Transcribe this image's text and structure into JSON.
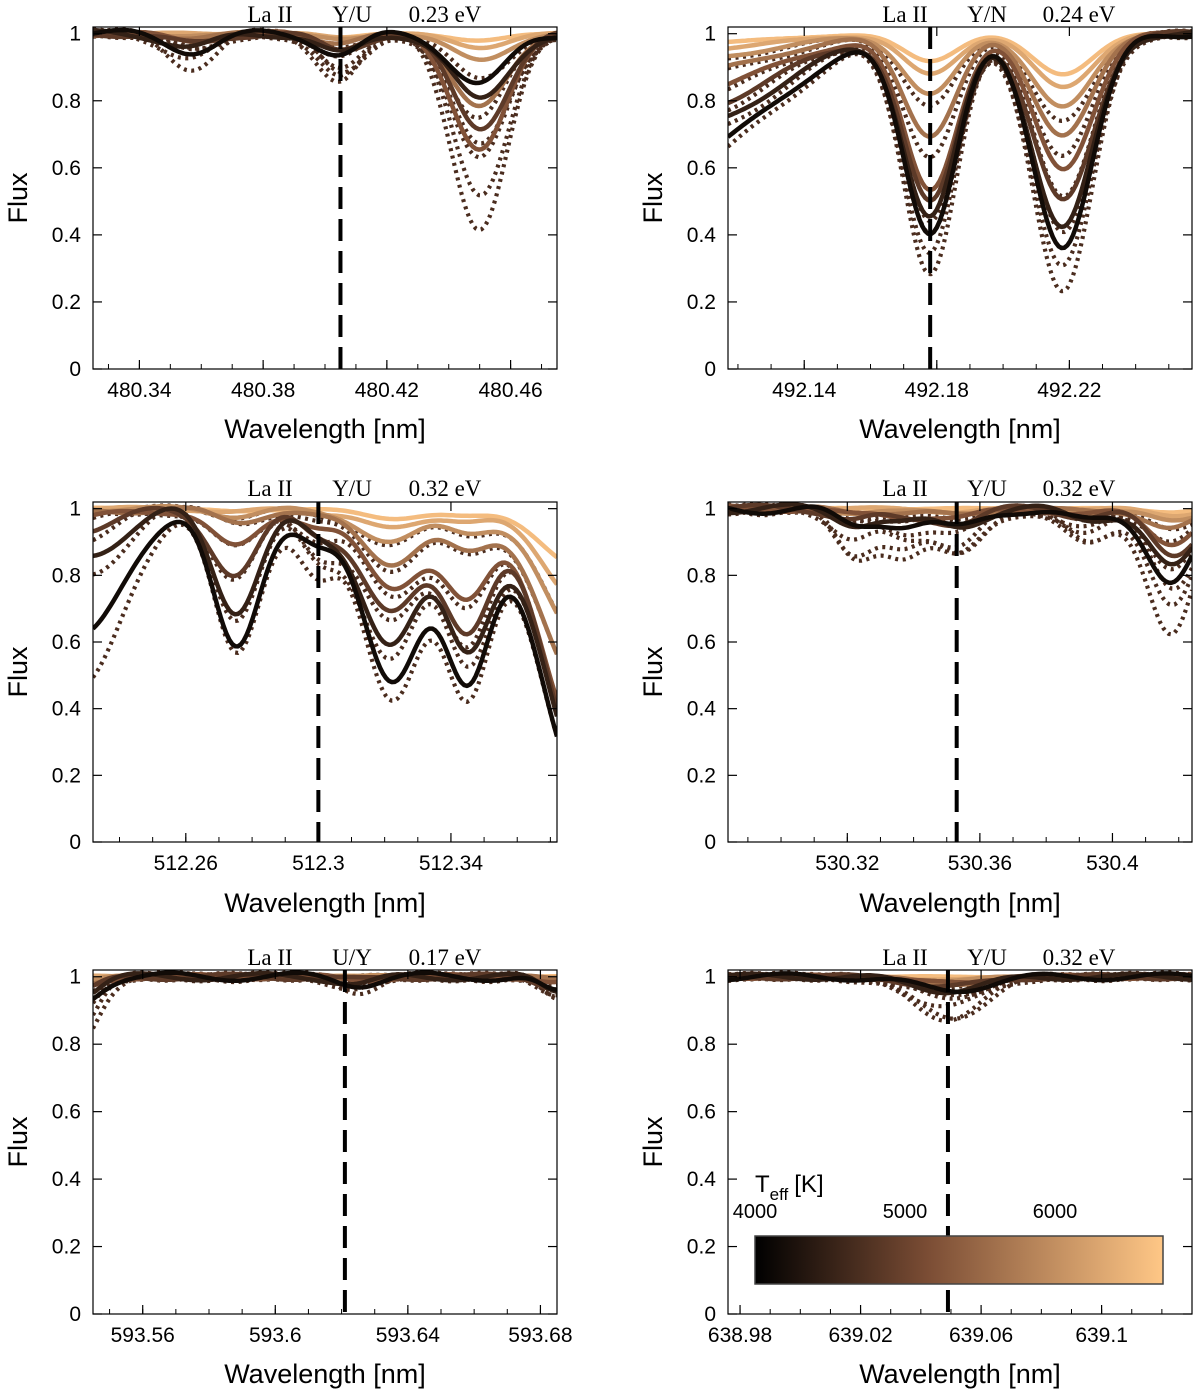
{
  "figure": {
    "colorbar": {
      "label": "T",
      "label_sub": "eff",
      "label_unit": "[K]",
      "ticks": [
        "4000",
        "5000",
        "6000"
      ],
      "range": [
        4000,
        6800
      ],
      "color_dark": "#000000",
      "color_mid": "#7a4c34",
      "color_light": "#ffc786"
    }
  },
  "chart_data": [
    {
      "type": "line",
      "line_label": "La II",
      "ratio_label": "Y/U",
      "energy_label": "0.23 eV",
      "xlabel": "Wavelength [nm]",
      "ylabel": "Flux",
      "xlim": [
        480.325,
        480.475
      ],
      "ylim": [
        0,
        1.02
      ],
      "xticks": [
        480.34,
        480.38,
        480.42,
        480.46
      ],
      "xtick_labels": [
        "480.34",
        "480.38",
        "480.42",
        "480.46"
      ],
      "yticks": [
        0,
        0.2,
        0.4,
        0.6,
        0.8,
        1
      ],
      "ytick_labels": [
        "0",
        "0.2",
        "0.4",
        "0.6",
        "0.8",
        "1"
      ],
      "line_center": 480.405,
      "features": [
        {
          "center": 480.357,
          "width": 0.008,
          "depths": [
            0.05,
            0.04,
            0.03,
            0.02,
            0.01,
            0.01,
            0.0,
            0.0
          ],
          "dot_factor": 1.9
        },
        {
          "center": 480.405,
          "width": 0.007,
          "depths": [
            0.06,
            0.06,
            0.05,
            0.04,
            0.03,
            0.02,
            0.01,
            0.01
          ],
          "dot_factor": 2.3
        },
        {
          "center": 480.45,
          "width": 0.009,
          "depths": [
            0.15,
            0.2,
            0.28,
            0.34,
            0.22,
            0.08,
            0.04,
            0.02
          ],
          "dot_factor": 1.7
        }
      ],
      "wiggle": 0.012
    },
    {
      "type": "line",
      "line_label": "La II",
      "ratio_label": "Y/N",
      "energy_label": "0.24 eV",
      "xlabel": "Wavelength [nm]",
      "ylabel": "Flux",
      "xlim": [
        492.117,
        492.257
      ],
      "ylim": [
        0,
        1.02
      ],
      "xticks": [
        492.14,
        492.18,
        492.22
      ],
      "xtick_labels": [
        "492.14",
        "492.18",
        "492.22"
      ],
      "yticks": [
        0,
        0.2,
        0.4,
        0.6,
        0.8,
        1
      ],
      "ytick_labels": [
        "0",
        "0.2",
        "0.4",
        "0.6",
        "0.8",
        "1"
      ],
      "line_center": 492.178,
      "features": [
        {
          "center": 492.178,
          "width": 0.008,
          "depths": [
            0.58,
            0.54,
            0.5,
            0.46,
            0.3,
            0.18,
            0.12,
            0.08
          ],
          "dot_factor": 1.2
        },
        {
          "center": 492.218,
          "width": 0.009,
          "depths": [
            0.63,
            0.58,
            0.5,
            0.4,
            0.3,
            0.22,
            0.16,
            0.12
          ],
          "dot_factor": 1.2
        },
        {
          "center": 492.1,
          "width": 0.028,
          "depths": [
            0.38,
            0.3,
            0.24,
            0.18,
            0.12,
            0.08,
            0.05,
            0.03
          ],
          "dot_factor": 1.1
        }
      ],
      "wiggle": 0.01
    },
    {
      "type": "line",
      "line_label": "La II",
      "ratio_label": "Y/U",
      "energy_label": "0.32 eV",
      "xlabel": "Wavelength [nm]",
      "ylabel": "Flux",
      "xlim": [
        512.232,
        512.372
      ],
      "ylim": [
        0,
        1.02
      ],
      "xticks": [
        512.26,
        512.3,
        512.34
      ],
      "xtick_labels": [
        "512.26",
        "512.3",
        "512.34"
      ],
      "yticks": [
        0,
        0.2,
        0.4,
        0.6,
        0.8,
        1
      ],
      "ytick_labels": [
        "0",
        "0.2",
        "0.4",
        "0.6",
        "0.8",
        "1"
      ],
      "line_center": 512.3,
      "features": [
        {
          "center": 512.275,
          "width": 0.007,
          "depths": [
            0.42,
            0.3,
            0.2,
            0.12,
            0.04,
            0.02,
            0.01,
            0.01
          ],
          "dot_factor": 1.05
        },
        {
          "center": 512.3,
          "width": 0.006,
          "depths": [
            0.1,
            0.08,
            0.06,
            0.04,
            0.02,
            0.01,
            0.01,
            0.0
          ],
          "dot_factor": 2.0
        },
        {
          "center": 512.322,
          "width": 0.009,
          "depths": [
            0.5,
            0.4,
            0.32,
            0.24,
            0.16,
            0.1,
            0.06,
            0.03
          ],
          "dot_factor": 1.1
        },
        {
          "center": 512.345,
          "width": 0.007,
          "depths": [
            0.52,
            0.4,
            0.34,
            0.26,
            0.12,
            0.06,
            0.03,
            0.02
          ],
          "dot_factor": 1.1
        },
        {
          "center": 512.38,
          "width": 0.012,
          "depths": [
            0.85,
            0.8,
            0.75,
            0.7,
            0.55,
            0.4,
            0.28,
            0.18
          ],
          "dot_factor": 1.0
        },
        {
          "center": 512.228,
          "width": 0.012,
          "depths": [
            0.4,
            0.14,
            0.06,
            0.03,
            0.01,
            0.0,
            0.0,
            0.0
          ],
          "dot_factor": 1.4
        }
      ],
      "wiggle": 0.02
    },
    {
      "type": "line",
      "line_label": "La II",
      "ratio_label": "Y/U",
      "energy_label": "0.32 eV",
      "xlabel": "Wavelength [nm]",
      "ylabel": "Flux",
      "xlim": [
        530.284,
        530.424
      ],
      "ylim": [
        0,
        1.02
      ],
      "xticks": [
        530.32,
        530.36,
        530.4
      ],
      "xtick_labels": [
        "530.32",
        "530.36",
        "530.4"
      ],
      "yticks": [
        0,
        0.2,
        0.4,
        0.6,
        0.8,
        1
      ],
      "ytick_labels": [
        "0",
        "0.2",
        "0.4",
        "0.6",
        "0.8",
        "1"
      ],
      "line_center": 530.353,
      "features": [
        {
          "center": 530.322,
          "width": 0.006,
          "depths": [
            0.05,
            0.04,
            0.03,
            0.02,
            0.01,
            0.01,
            0.0,
            0.0
          ],
          "dot_factor": 3.0
        },
        {
          "center": 530.337,
          "width": 0.006,
          "depths": [
            0.04,
            0.04,
            0.03,
            0.02,
            0.01,
            0.01,
            0.0,
            0.0
          ],
          "dot_factor": 3.0
        },
        {
          "center": 530.353,
          "width": 0.007,
          "depths": [
            0.06,
            0.05,
            0.04,
            0.03,
            0.02,
            0.01,
            0.01,
            0.0
          ],
          "dot_factor": 2.5
        },
        {
          "center": 530.392,
          "width": 0.007,
          "depths": [
            0.04,
            0.03,
            0.02,
            0.02,
            0.01,
            0.01,
            0.0,
            0.0
          ],
          "dot_factor": 3.0
        },
        {
          "center": 530.418,
          "width": 0.007,
          "depths": [
            0.22,
            0.18,
            0.14,
            0.1,
            0.06,
            0.04,
            0.02,
            0.01
          ],
          "dot_factor": 1.7
        }
      ],
      "wiggle": 0.015
    },
    {
      "type": "line",
      "line_label": "La II",
      "ratio_label": "U/Y",
      "energy_label": "0.17 eV",
      "xlabel": "Wavelength [nm]",
      "ylabel": "Flux",
      "xlim": [
        593.545,
        593.685
      ],
      "ylim": [
        0,
        1.02
      ],
      "xticks": [
        593.56,
        593.6,
        593.64,
        593.68
      ],
      "xtick_labels": [
        "593.56",
        "593.6",
        "593.64",
        "593.68"
      ],
      "yticks": [
        0,
        0.2,
        0.4,
        0.6,
        0.8,
        1
      ],
      "ytick_labels": [
        "0",
        "0.2",
        "0.4",
        "0.6",
        "0.8",
        "1"
      ],
      "line_center": 593.621,
      "features": [
        {
          "center": 593.54,
          "width": 0.006,
          "depths": [
            0.08,
            0.06,
            0.05,
            0.04,
            0.02,
            0.01,
            0.0,
            0.0
          ],
          "dot_factor": 2.5
        },
        {
          "center": 593.625,
          "width": 0.006,
          "depths": [
            0.02,
            0.02,
            0.01,
            0.01,
            0.0,
            0.0,
            0.0,
            0.0
          ],
          "dot_factor": 1.8
        },
        {
          "center": 593.685,
          "width": 0.005,
          "depths": [
            0.05,
            0.04,
            0.03,
            0.02,
            0.01,
            0.0,
            0.0,
            0.0
          ],
          "dot_factor": 1.5
        }
      ],
      "wiggle": 0.012
    },
    {
      "type": "line",
      "line_label": "La II",
      "ratio_label": "Y/U",
      "energy_label": "0.32 eV",
      "xlabel": "Wavelength [nm]",
      "ylabel": "Flux",
      "xlim": [
        638.976,
        639.13
      ],
      "ylim": [
        0,
        1.02
      ],
      "xticks": [
        638.98,
        639.02,
        639.06,
        639.1
      ],
      "xtick_labels": [
        "638.98",
        "639.02",
        "639.06",
        "639.1"
      ],
      "yticks": [
        0,
        0.2,
        0.4,
        0.6,
        0.8,
        1
      ],
      "ytick_labels": [
        "0",
        "0.2",
        "0.4",
        "0.6",
        "0.8",
        "1"
      ],
      "line_center": 639.049,
      "features": [
        {
          "center": 639.049,
          "width": 0.012,
          "depths": [
            0.04,
            0.04,
            0.03,
            0.02,
            0.02,
            0.01,
            0.01,
            0.0
          ],
          "dot_factor": 3.0
        }
      ],
      "wiggle": 0.01
    }
  ]
}
